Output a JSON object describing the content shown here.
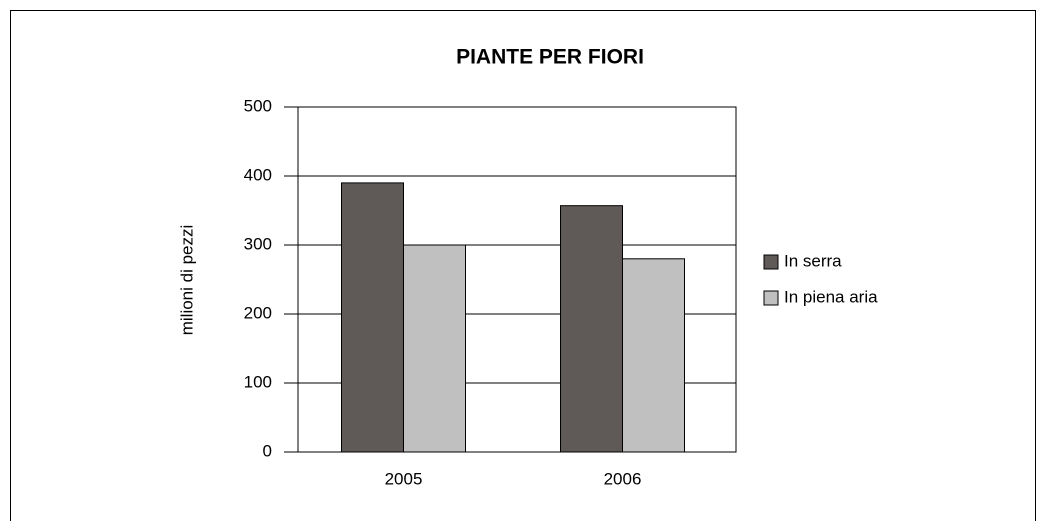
{
  "chart_data": {
    "type": "bar",
    "title": "PIANTE PER FIORI",
    "y_label": "milioni di pezzi",
    "categories": [
      "2005",
      "2006"
    ],
    "series": [
      {
        "name": "In serra",
        "color": "#5f5957",
        "values": [
          390,
          357
        ]
      },
      {
        "name": "In piena aria",
        "color": "#c0c0c0",
        "values": [
          300,
          280
        ]
      }
    ],
    "ylim": [
      0,
      500
    ],
    "yticks": [
      0,
      100,
      200,
      300,
      400,
      500
    ],
    "grid": true,
    "legend": "right"
  }
}
